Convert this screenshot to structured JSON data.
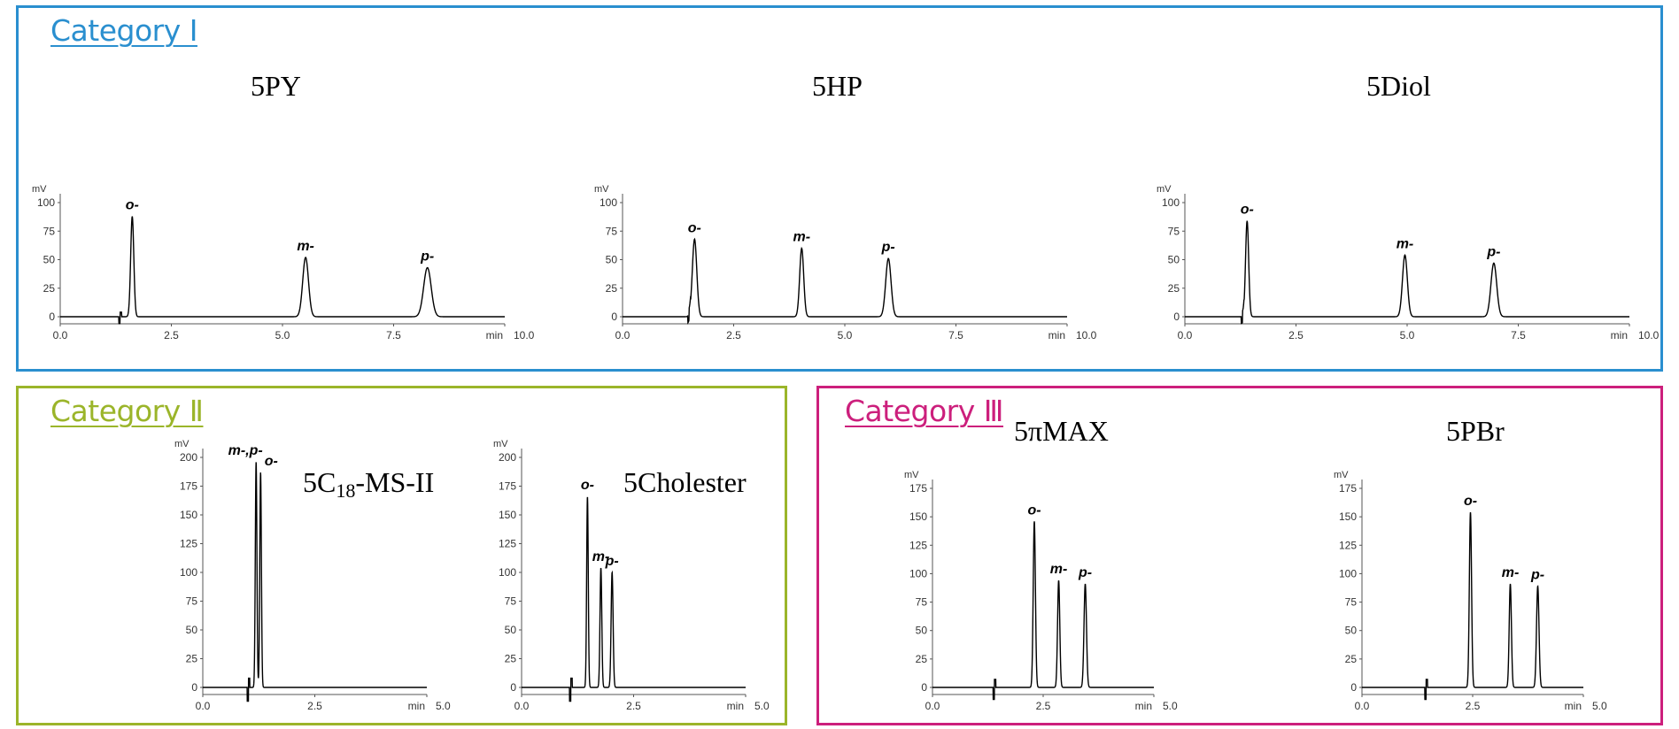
{
  "categories": {
    "c1": "Category Ⅰ",
    "c2": "Category Ⅱ",
    "c3": "Category Ⅲ"
  },
  "chart_data": [
    {
      "type": "line",
      "title": "5PY",
      "ylabel": "mV",
      "xlabel": "min",
      "xlim": [
        0,
        10
      ],
      "ylim": [
        0,
        100
      ],
      "xticks": [
        "0.0",
        "2.5",
        "5.0",
        "7.5",
        "10.0"
      ],
      "yticks": [
        "0",
        "25",
        "50",
        "75",
        "100"
      ],
      "injection_time": 1.35,
      "peaks": [
        {
          "label": "o-",
          "t": 1.62,
          "h": 88,
          "w": 0.035
        },
        {
          "label": "m-",
          "t": 5.52,
          "h": 52,
          "w": 0.065
        },
        {
          "label": "p-",
          "t": 8.26,
          "h": 43,
          "w": 0.085
        }
      ]
    },
    {
      "type": "line",
      "title": "5HP",
      "ylabel": "mV",
      "xlabel": "min",
      "xlim": [
        0,
        10
      ],
      "ylim": [
        0,
        100
      ],
      "xticks": [
        "0.0",
        "2.5",
        "5.0",
        "7.5",
        "10.0"
      ],
      "yticks": [
        "0",
        "25",
        "50",
        "75",
        "100"
      ],
      "injection_time": 1.5,
      "peaks": [
        {
          "label": "o-",
          "t": 1.62,
          "h": 68,
          "w": 0.05
        },
        {
          "label": "m-",
          "t": 4.03,
          "h": 60,
          "w": 0.045
        },
        {
          "label": "p-",
          "t": 5.98,
          "h": 51,
          "w": 0.06
        }
      ]
    },
    {
      "type": "line",
      "title": "5Diol",
      "ylabel": "mV",
      "xlabel": "min",
      "xlim": [
        0,
        10
      ],
      "ylim": [
        0,
        100
      ],
      "xticks": [
        "0.0",
        "2.5",
        "5.0",
        "7.5",
        "10.0"
      ],
      "yticks": [
        "0",
        "25",
        "50",
        "75",
        "100"
      ],
      "injection_time": 1.3,
      "peaks": [
        {
          "label": "o-",
          "t": 1.4,
          "h": 84,
          "w": 0.035
        },
        {
          "label": "m-",
          "t": 4.95,
          "h": 54,
          "w": 0.055
        },
        {
          "label": "p-",
          "t": 6.95,
          "h": 47,
          "w": 0.065
        }
      ]
    },
    {
      "type": "line",
      "title": "5C18-MS-II",
      "ylabel": "mV",
      "xlabel": "min",
      "xlim": [
        0,
        5
      ],
      "ylim": [
        0,
        200
      ],
      "xticks": [
        "0.0",
        "2.5",
        "5.0"
      ],
      "yticks": [
        "0",
        "25",
        "50",
        "75",
        "100",
        "125",
        "150",
        "175",
        "200"
      ],
      "injection_time": 1.02,
      "peaks": [
        {
          "label": "m-,p-",
          "t": 1.19,
          "h": 196,
          "w": 0.018
        },
        {
          "label": "o-",
          "t": 1.29,
          "h": 187,
          "w": 0.018
        }
      ]
    },
    {
      "type": "line",
      "title": "5Cholester",
      "ylabel": "mV",
      "xlabel": "min",
      "xlim": [
        0,
        5
      ],
      "ylim": [
        0,
        200
      ],
      "xticks": [
        "0.0",
        "2.5",
        "5.0"
      ],
      "yticks": [
        "0",
        "25",
        "50",
        "75",
        "100",
        "125",
        "150",
        "175",
        "200"
      ],
      "injection_time": 1.1,
      "peaks": [
        {
          "label": "o-",
          "t": 1.47,
          "h": 166,
          "w": 0.018
        },
        {
          "label": "m-",
          "t": 1.77,
          "h": 104,
          "w": 0.02
        },
        {
          "label": "p-",
          "t": 2.02,
          "h": 100,
          "w": 0.022
        }
      ]
    },
    {
      "type": "line",
      "title": "5πMAX",
      "ylabel": "mV",
      "xlabel": "min",
      "xlim": [
        0,
        5
      ],
      "ylim": [
        0,
        175
      ],
      "xticks": [
        "0.0",
        "2.5",
        "5.0"
      ],
      "yticks": [
        "0",
        "25",
        "50",
        "75",
        "100",
        "125",
        "150",
        "175"
      ],
      "injection_time": 1.4,
      "peaks": [
        {
          "label": "o-",
          "t": 2.3,
          "h": 146,
          "w": 0.025
        },
        {
          "label": "m-",
          "t": 2.85,
          "h": 94,
          "w": 0.025
        },
        {
          "label": "p-",
          "t": 3.45,
          "h": 91,
          "w": 0.028
        }
      ]
    },
    {
      "type": "line",
      "title": "5PBr",
      "ylabel": "mV",
      "xlabel": "min",
      "xlim": [
        0,
        5
      ],
      "ylim": [
        0,
        175
      ],
      "xticks": [
        "0.0",
        "2.5",
        "5.0"
      ],
      "yticks": [
        "0",
        "25",
        "50",
        "75",
        "100",
        "125",
        "150",
        "175"
      ],
      "injection_time": 1.45,
      "peaks": [
        {
          "label": "o-",
          "t": 2.45,
          "h": 154,
          "w": 0.025
        },
        {
          "label": "m-",
          "t": 3.35,
          "h": 91,
          "w": 0.025
        },
        {
          "label": "p-",
          "t": 3.97,
          "h": 89,
          "w": 0.028
        }
      ]
    }
  ]
}
